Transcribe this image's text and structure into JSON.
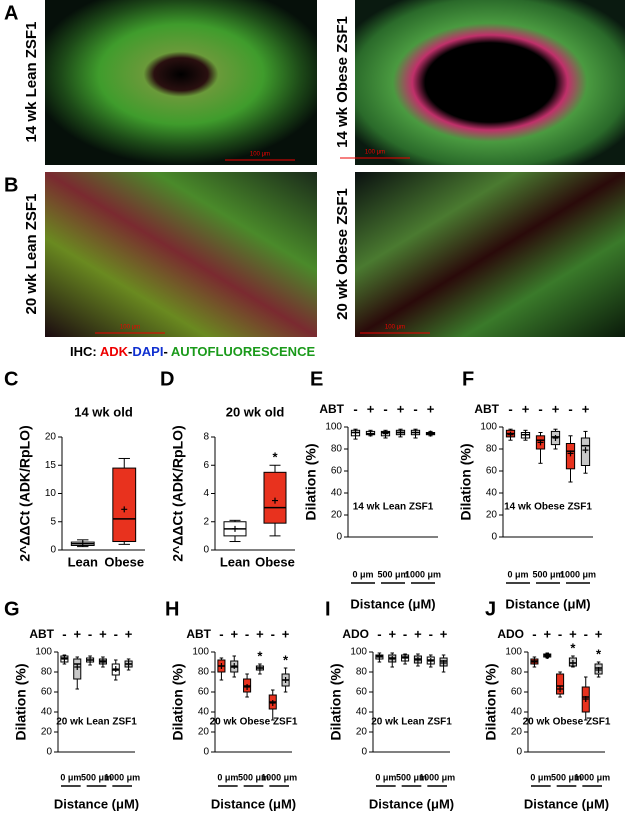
{
  "figure": {
    "panels": [
      "A",
      "B"
    ],
    "images": [
      {
        "label": "14 wk Lean ZSF1",
        "scale": "100 μm"
      },
      {
        "label": "14 wk Obese ZSF1",
        "scale": "100 μm"
      },
      {
        "label": "20 wk Lean ZSF1",
        "scale": "100 μm"
      },
      {
        "label": "20 wk Obese ZSF1",
        "scale": "100 μm"
      }
    ],
    "caption": [
      "IHC:",
      "ADK",
      "-",
      "DAPI",
      "-",
      "AUTOFLUORESCENCE"
    ]
  },
  "chart_data": [
    {
      "type": "box",
      "panel": "C",
      "title": "14 wk old",
      "ylabel": "2^ΔΔCt (ADK/RpLO)",
      "categories": [
        "Lean",
        "Obese"
      ],
      "ylim": [
        0,
        20
      ],
      "yticks": [
        0,
        5,
        10,
        15,
        20
      ],
      "boxes": [
        {
          "color": "#ffffff",
          "min": 0.6,
          "q1": 0.8,
          "median": 1.1,
          "q3": 1.4,
          "max": 1.8,
          "mean": 1.1
        },
        {
          "color": "#e8321e",
          "min": 1,
          "q1": 1.5,
          "median": 5.5,
          "q3": 14.5,
          "max": 16.2,
          "mean": 7.2
        }
      ],
      "significance": [
        null,
        null
      ]
    },
    {
      "type": "box",
      "panel": "D",
      "title": "20 wk old",
      "ylabel": "2^ΔΔCt (ADK/RpLO)",
      "categories": [
        "Lean",
        "Obese"
      ],
      "ylim": [
        0,
        8
      ],
      "yticks": [
        0,
        2,
        4,
        6,
        8
      ],
      "boxes": [
        {
          "color": "#ffffff",
          "min": 0.6,
          "q1": 1,
          "median": 1.5,
          "q3": 2,
          "max": 2.1,
          "mean": 1.5
        },
        {
          "color": "#e8321e",
          "min": 1,
          "q1": 1.9,
          "median": 3,
          "q3": 5.5,
          "max": 6,
          "mean": 3.5
        }
      ],
      "significance": [
        null,
        "*"
      ]
    },
    {
      "type": "box",
      "panel": "E",
      "annotation": "14 wk Lean ZSF1",
      "ylabel": "Dilation (%)",
      "xlabel": "Distance (μM)",
      "treatment": "ABT",
      "categories": [
        "-",
        "+",
        "-",
        "+",
        "-",
        "+"
      ],
      "groups": [
        "0 μm",
        "500 μm",
        "1000 μm"
      ],
      "ylim": [
        0,
        100
      ],
      "yticks": [
        0,
        20,
        40,
        60,
        80,
        100
      ],
      "boxes": [
        {
          "color": "#ffffff",
          "min": 89,
          "q1": 92,
          "median": 95,
          "q3": 97,
          "max": 98,
          "mean": 95
        },
        {
          "color": "#ffffff",
          "min": 92,
          "q1": 93,
          "median": 94,
          "q3": 96,
          "max": 97,
          "mean": 94
        },
        {
          "color": "#ffffff",
          "min": 90,
          "q1": 92,
          "median": 95,
          "q3": 96,
          "max": 97,
          "mean": 94
        },
        {
          "color": "#c8c8c8",
          "min": 91,
          "q1": 93,
          "median": 95,
          "q3": 97,
          "max": 98,
          "mean": 95
        },
        {
          "color": "#ffffff",
          "min": 90,
          "q1": 93,
          "median": 95,
          "q3": 97,
          "max": 98,
          "mean": 95
        },
        {
          "color": "#c8c8c8",
          "min": 92,
          "q1": 93,
          "median": 94,
          "q3": 95,
          "max": 96,
          "mean": 94
        }
      ],
      "significance": [
        null,
        null,
        null,
        null,
        null,
        null
      ]
    },
    {
      "type": "box",
      "panel": "F",
      "annotation": "14 wk Obese ZSF1",
      "ylabel": "Dilation (%)",
      "xlabel": "Distance (μM)",
      "treatment": "ABT",
      "categories": [
        "-",
        "+",
        "-",
        "+",
        "-",
        "+"
      ],
      "groups": [
        "0 μm",
        "500 μm",
        "1000 μm"
      ],
      "ylim": [
        0,
        100
      ],
      "yticks": [
        0,
        20,
        40,
        60,
        80,
        100
      ],
      "boxes": [
        {
          "color": "#e8321e",
          "min": 88,
          "q1": 91,
          "median": 94,
          "q3": 97,
          "max": 98,
          "mean": 93
        },
        {
          "color": "#ffffff",
          "min": 88,
          "q1": 90,
          "median": 93,
          "q3": 95,
          "max": 97,
          "mean": 93
        },
        {
          "color": "#e8321e",
          "min": 67,
          "q1": 80,
          "median": 88,
          "q3": 92,
          "max": 95,
          "mean": 86
        },
        {
          "color": "#c8c8c8",
          "min": 80,
          "q1": 84,
          "median": 91,
          "q3": 96,
          "max": 98,
          "mean": 90
        },
        {
          "color": "#e8321e",
          "min": 50,
          "q1": 62,
          "median": 78,
          "q3": 85,
          "max": 92,
          "mean": 76
        },
        {
          "color": "#c8c8c8",
          "min": 58,
          "q1": 65,
          "median": 83,
          "q3": 90,
          "max": 96,
          "mean": 79
        }
      ],
      "significance": [
        null,
        null,
        null,
        null,
        null,
        null
      ]
    },
    {
      "type": "box",
      "panel": "G",
      "annotation": "20 wk Lean ZSF1",
      "ylabel": "Dilation (%)",
      "xlabel": "Distance (μM)",
      "treatment": "ABT",
      "categories": [
        "-",
        "+",
        "-",
        "+",
        "-",
        "+"
      ],
      "groups": [
        "0 μm",
        "500 μm",
        "1000 μm"
      ],
      "ylim": [
        0,
        100
      ],
      "yticks": [
        0,
        20,
        40,
        60,
        80,
        100
      ],
      "boxes": [
        {
          "color": "#ffffff",
          "min": 88,
          "q1": 90,
          "median": 94,
          "q3": 96,
          "max": 97,
          "mean": 93
        },
        {
          "color": "#c8c8c8",
          "min": 63,
          "q1": 73,
          "median": 88,
          "q3": 93,
          "max": 95,
          "mean": 85
        },
        {
          "color": "#ffffff",
          "min": 87,
          "q1": 90,
          "median": 92,
          "q3": 94,
          "max": 96,
          "mean": 92
        },
        {
          "color": "#c8c8c8",
          "min": 85,
          "q1": 88,
          "median": 91,
          "q3": 93,
          "max": 95,
          "mean": 90
        },
        {
          "color": "#ffffff",
          "min": 72,
          "q1": 77,
          "median": 82,
          "q3": 88,
          "max": 92,
          "mean": 83
        },
        {
          "color": "#c8c8c8",
          "min": 82,
          "q1": 85,
          "median": 88,
          "q3": 91,
          "max": 93,
          "mean": 88
        }
      ],
      "significance": [
        null,
        null,
        null,
        null,
        null,
        null
      ]
    },
    {
      "type": "box",
      "panel": "H",
      "annotation": "20 wk Obese ZSF1",
      "ylabel": "Dilation (%)",
      "xlabel": "Distance (μM)",
      "treatment": "ABT",
      "categories": [
        "-",
        "+",
        "-",
        "+",
        "-",
        "+"
      ],
      "groups": [
        "0 μm",
        "500 μm",
        "1000 μm"
      ],
      "ylim": [
        0,
        100
      ],
      "yticks": [
        0,
        20,
        40,
        60,
        80,
        100
      ],
      "boxes": [
        {
          "color": "#e8321e",
          "min": 72,
          "q1": 80,
          "median": 86,
          "q3": 92,
          "max": 94,
          "mean": 86
        },
        {
          "color": "#c8c8c8",
          "min": 75,
          "q1": 80,
          "median": 85,
          "q3": 91,
          "max": 96,
          "mean": 86
        },
        {
          "color": "#e8321e",
          "min": 55,
          "q1": 60,
          "median": 66,
          "q3": 73,
          "max": 78,
          "mean": 65
        },
        {
          "color": "#c8c8c8",
          "min": 78,
          "q1": 82,
          "median": 84,
          "q3": 86,
          "max": 88,
          "mean": 84
        },
        {
          "color": "#e8321e",
          "min": 32,
          "q1": 43,
          "median": 50,
          "q3": 57,
          "max": 62,
          "mean": 49
        },
        {
          "color": "#c8c8c8",
          "min": 60,
          "q1": 66,
          "median": 72,
          "q3": 78,
          "max": 84,
          "mean": 72
        }
      ],
      "significance": [
        null,
        null,
        null,
        "*",
        null,
        "*"
      ]
    },
    {
      "type": "box",
      "panel": "I",
      "annotation": "20 wk Lean ZSF1",
      "ylabel": "Dilation (%)",
      "xlabel": "Distance (μM)",
      "treatment": "ADO",
      "categories": [
        "-",
        "+",
        "-",
        "+",
        "-",
        "+"
      ],
      "groups": [
        "0 μm",
        "500 μm",
        "1000 μm"
      ],
      "ylim": [
        0,
        100
      ],
      "yticks": [
        0,
        20,
        40,
        60,
        80,
        100
      ],
      "boxes": [
        {
          "color": "#ffffff",
          "min": 90,
          "q1": 93,
          "median": 96,
          "q3": 97,
          "max": 99,
          "mean": 95
        },
        {
          "color": "#c8c8c8",
          "min": 85,
          "q1": 90,
          "median": 94,
          "q3": 97,
          "max": 99,
          "mean": 93
        },
        {
          "color": "#ffffff",
          "min": 88,
          "q1": 91,
          "median": 95,
          "q3": 97,
          "max": 98,
          "mean": 94
        },
        {
          "color": "#c8c8c8",
          "min": 86,
          "q1": 89,
          "median": 93,
          "q3": 96,
          "max": 98,
          "mean": 92
        },
        {
          "color": "#ffffff",
          "min": 85,
          "q1": 88,
          "median": 92,
          "q3": 95,
          "max": 97,
          "mean": 91
        },
        {
          "color": "#c8c8c8",
          "min": 80,
          "q1": 86,
          "median": 91,
          "q3": 94,
          "max": 97,
          "mean": 89
        }
      ],
      "significance": [
        null,
        null,
        null,
        null,
        null,
        null
      ]
    },
    {
      "type": "box",
      "panel": "J",
      "annotation": "20 wk Obese ZSF1",
      "ylabel": "Dilation (%)",
      "xlabel": "Distance (μM)",
      "treatment": "ADO",
      "categories": [
        "-",
        "+",
        "-",
        "+",
        "-",
        "+"
      ],
      "groups": [
        "0 μm",
        "500 μm",
        "1000 μm"
      ],
      "ylim": [
        0,
        100
      ],
      "yticks": [
        0,
        20,
        40,
        60,
        80,
        100
      ],
      "boxes": [
        {
          "color": "#e8321e",
          "min": 85,
          "q1": 88,
          "median": 91,
          "q3": 93,
          "max": 95,
          "mean": 90
        },
        {
          "color": "#ffffff",
          "min": 94,
          "q1": 95,
          "median": 97,
          "q3": 98,
          "max": 99,
          "mean": 96
        },
        {
          "color": "#e8321e",
          "min": 55,
          "q1": 58,
          "median": 66,
          "q3": 78,
          "max": 80,
          "mean": 63
        },
        {
          "color": "#c8c8c8",
          "min": 85,
          "q1": 86,
          "median": 89,
          "q3": 94,
          "max": 96,
          "mean": 89
        },
        {
          "color": "#e8321e",
          "min": 32,
          "q1": 40,
          "median": 55,
          "q3": 65,
          "max": 75,
          "mean": 53
        },
        {
          "color": "#c8c8c8",
          "min": 75,
          "q1": 78,
          "median": 84,
          "q3": 88,
          "max": 90,
          "mean": 82
        }
      ],
      "significance": [
        null,
        null,
        null,
        "*",
        null,
        "*"
      ]
    }
  ]
}
